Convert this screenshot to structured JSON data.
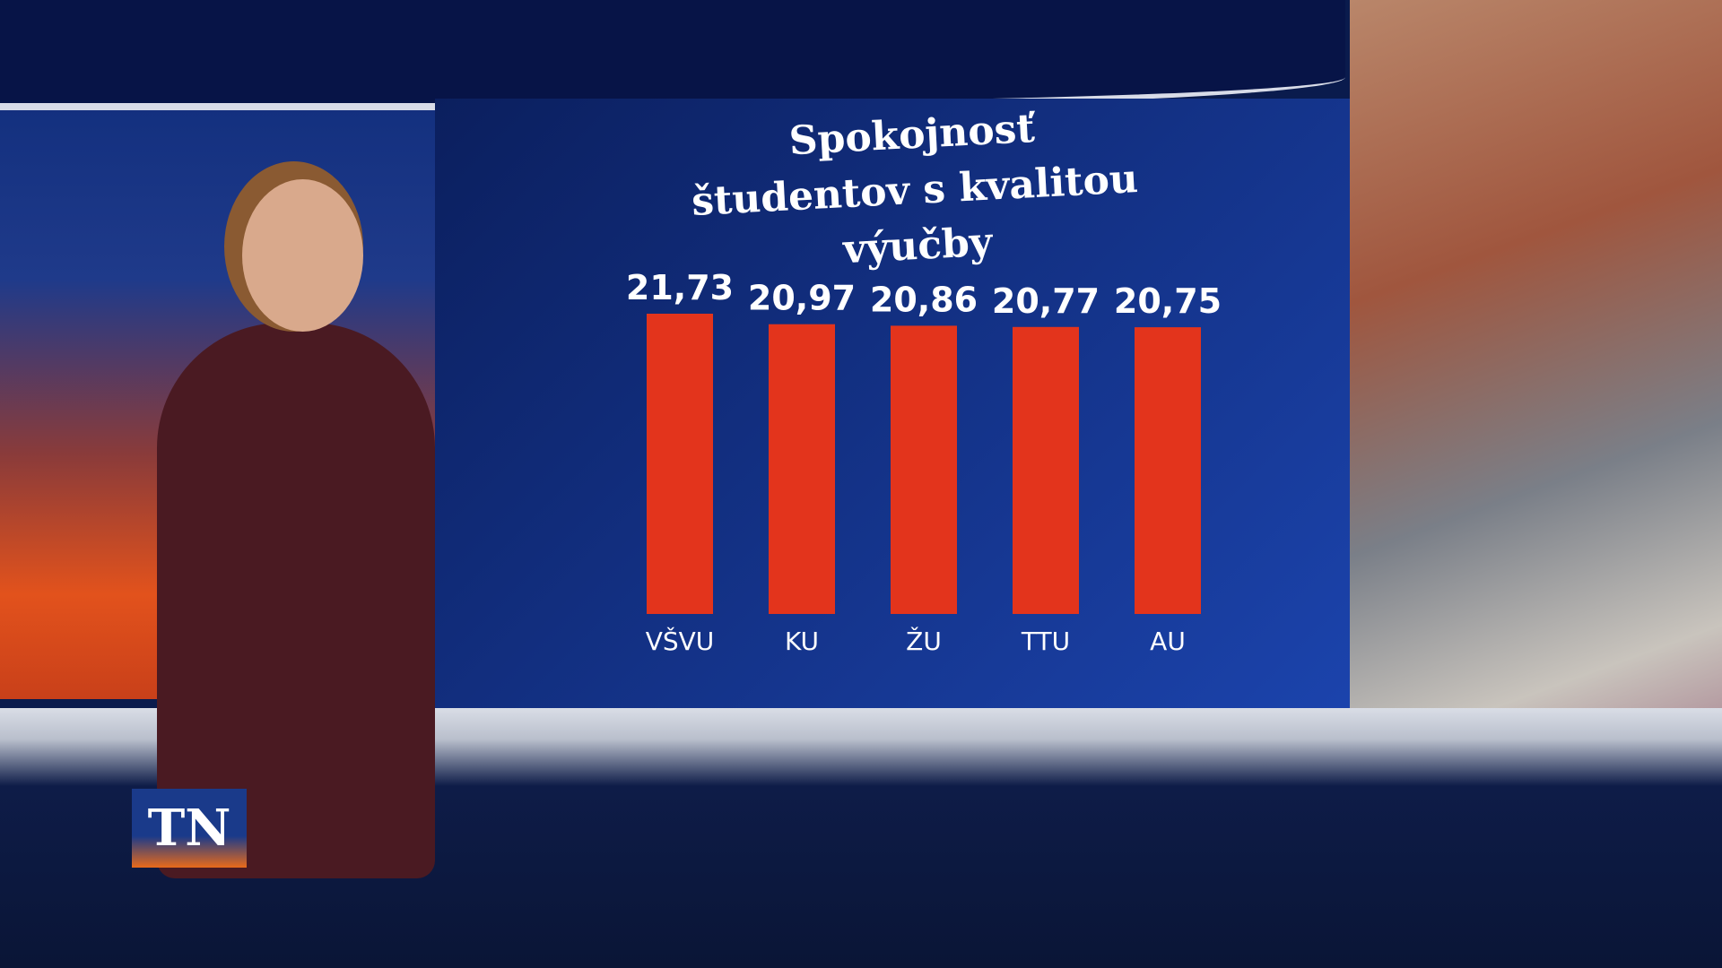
{
  "chart_data": {
    "type": "bar",
    "title": "Spokojnosť študentov s kvalitou výučby",
    "categories": [
      "VŠVU",
      "KU",
      "ŽU",
      "TTU",
      "AU"
    ],
    "values": [
      21.73,
      20.97,
      20.86,
      20.77,
      20.75
    ],
    "value_labels": [
      "21,73",
      "20,97",
      "20,86",
      "20,77",
      "20,75"
    ],
    "color": "#e3341c"
  },
  "logo": "TN"
}
